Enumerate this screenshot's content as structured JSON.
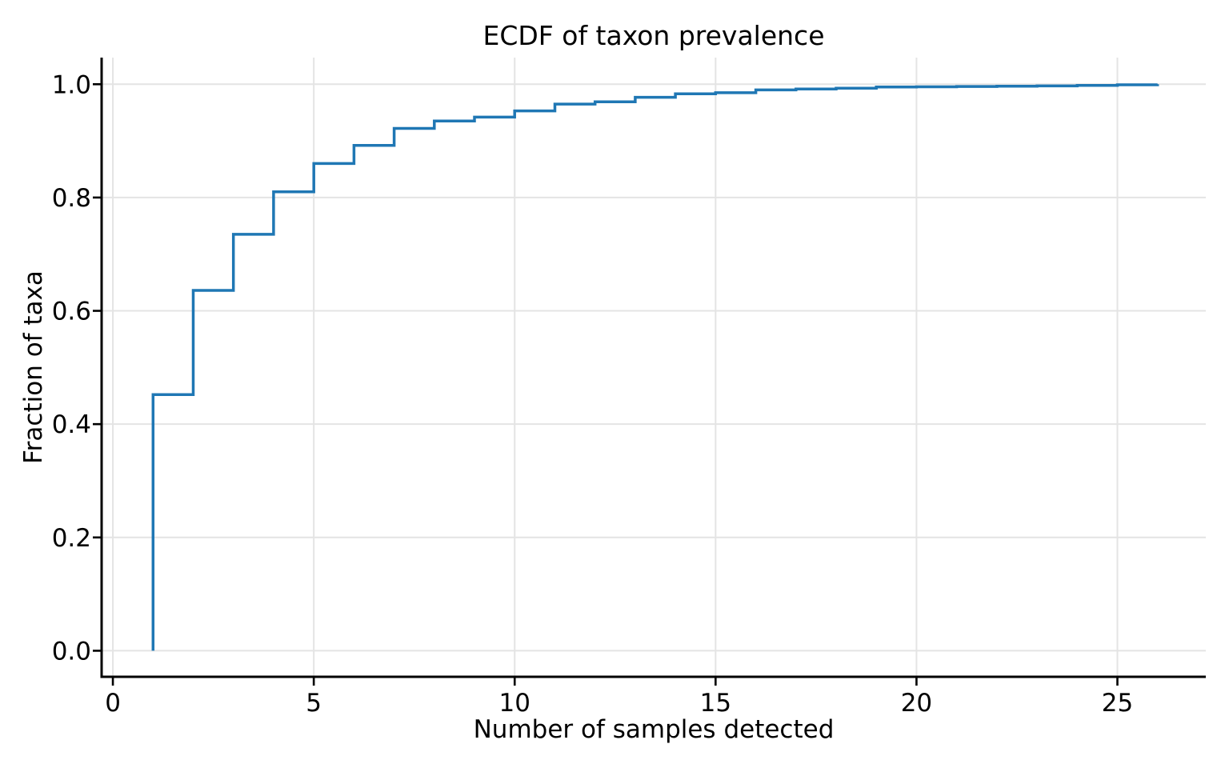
{
  "title": "ECDF of taxon prevalence",
  "chart_data": {
    "type": "line",
    "subtype": "ecdf-step",
    "title": "ECDF of taxon prevalence",
    "xlabel": "Number of samples detected",
    "ylabel": "Fraction of taxa",
    "grid": true,
    "legend": "none",
    "line_color": "#1f77b4",
    "line_width": 3.5,
    "grid_color": "#e4e4e4",
    "spine_color": "#000000",
    "xlim": [
      -0.28,
      27.2
    ],
    "ylim": [
      -0.046,
      1.047
    ],
    "x_ticks": [
      0,
      5,
      10,
      15,
      20,
      25
    ],
    "x_tick_labels": [
      "0",
      "5",
      "10",
      "15",
      "20",
      "25"
    ],
    "y_ticks": [
      0.0,
      0.2,
      0.4,
      0.6,
      0.8,
      1.0
    ],
    "y_tick_labels": [
      "0.0",
      "0.2",
      "0.4",
      "0.6",
      "0.8",
      "1.0"
    ],
    "start_point": {
      "x": 1,
      "y": 0.0
    },
    "x": [
      1,
      2,
      3,
      4,
      5,
      6,
      7,
      8,
      9,
      10,
      11,
      12,
      13,
      14,
      15,
      16,
      17,
      18,
      19,
      20,
      21,
      22,
      23,
      24,
      25,
      26
    ],
    "y": [
      0.452,
      0.636,
      0.735,
      0.81,
      0.86,
      0.892,
      0.922,
      0.935,
      0.942,
      0.953,
      0.965,
      0.969,
      0.977,
      0.983,
      0.985,
      0.99,
      0.9915,
      0.993,
      0.995,
      0.9955,
      0.996,
      0.9965,
      0.997,
      0.998,
      0.999,
      1.0
    ]
  }
}
